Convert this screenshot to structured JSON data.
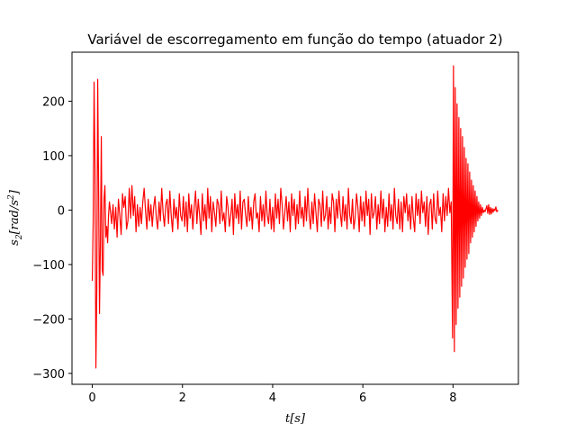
{
  "chart_data": {
    "type": "line",
    "title": "Variável de escorregamento em função do tempo (atuador 2)",
    "xlabel": "t[s]",
    "ylabel": "s2[rad/s2]",
    "xlim": [
      -0.45,
      9.45
    ],
    "ylim": [
      -320,
      290
    ],
    "x_ticks": [
      0,
      2,
      4,
      6,
      8
    ],
    "y_ticks": [
      -300,
      -200,
      -100,
      0,
      100,
      200
    ],
    "grid": false,
    "legend": "none",
    "series": [
      {
        "color": "#ff0000",
        "x": [
          0.0,
          0.02,
          0.04,
          0.06,
          0.08,
          0.1,
          0.12,
          0.14,
          0.16,
          0.18,
          0.2,
          0.22,
          0.24,
          0.26,
          0.28,
          0.3,
          0.32,
          0.34,
          0.36,
          0.38,
          0.4,
          0.43,
          0.46,
          0.49,
          0.52,
          0.55,
          0.58,
          0.61,
          0.64,
          0.67,
          0.7,
          0.73,
          0.76,
          0.79,
          0.82,
          0.85,
          0.88,
          0.91,
          0.94,
          0.97,
          1.0,
          1.03,
          1.06,
          1.09,
          1.12,
          1.15,
          1.18,
          1.21,
          1.24,
          1.27,
          1.3,
          1.33,
          1.36,
          1.39,
          1.42,
          1.45,
          1.48,
          1.51,
          1.54,
          1.57,
          1.6,
          1.63,
          1.66,
          1.69,
          1.72,
          1.75,
          1.78,
          1.81,
          1.84,
          1.87,
          1.9,
          1.93,
          1.96,
          1.99,
          2.02,
          2.05,
          2.08,
          2.11,
          2.14,
          2.17,
          2.2,
          2.23,
          2.26,
          2.29,
          2.32,
          2.35,
          2.38,
          2.41,
          2.44,
          2.47,
          2.5,
          2.53,
          2.56,
          2.59,
          2.62,
          2.65,
          2.68,
          2.71,
          2.74,
          2.77,
          2.8,
          2.83,
          2.86,
          2.89,
          2.92,
          2.95,
          2.98,
          3.01,
          3.04,
          3.07,
          3.1,
          3.13,
          3.16,
          3.19,
          3.22,
          3.25,
          3.28,
          3.31,
          3.34,
          3.37,
          3.4,
          3.43,
          3.46,
          3.49,
          3.52,
          3.55,
          3.58,
          3.61,
          3.64,
          3.67,
          3.7,
          3.73,
          3.76,
          3.79,
          3.82,
          3.85,
          3.88,
          3.91,
          3.94,
          3.97,
          4.0,
          4.03,
          4.06,
          4.09,
          4.12,
          4.15,
          4.18,
          4.21,
          4.24,
          4.27,
          4.3,
          4.33,
          4.36,
          4.39,
          4.42,
          4.45,
          4.48,
          4.51,
          4.54,
          4.57,
          4.6,
          4.63,
          4.66,
          4.69,
          4.72,
          4.75,
          4.78,
          4.81,
          4.84,
          4.87,
          4.9,
          4.93,
          4.96,
          4.99,
          5.02,
          5.05,
          5.08,
          5.11,
          5.14,
          5.17,
          5.2,
          5.23,
          5.26,
          5.29,
          5.32,
          5.35,
          5.38,
          5.41,
          5.44,
          5.47,
          5.5,
          5.53,
          5.56,
          5.59,
          5.62,
          5.65,
          5.68,
          5.71,
          5.74,
          5.77,
          5.8,
          5.83,
          5.86,
          5.89,
          5.92,
          5.95,
          5.98,
          6.01,
          6.04,
          6.07,
          6.1,
          6.13,
          6.16,
          6.19,
          6.22,
          6.25,
          6.28,
          6.31,
          6.34,
          6.37,
          6.4,
          6.43,
          6.46,
          6.49,
          6.52,
          6.55,
          6.58,
          6.61,
          6.64,
          6.67,
          6.7,
          6.73,
          6.76,
          6.79,
          6.82,
          6.85,
          6.88,
          6.91,
          6.94,
          6.97,
          7.0,
          7.03,
          7.06,
          7.09,
          7.12,
          7.15,
          7.18,
          7.21,
          7.24,
          7.27,
          7.3,
          7.33,
          7.36,
          7.39,
          7.42,
          7.45,
          7.48,
          7.51,
          7.54,
          7.57,
          7.6,
          7.63,
          7.66,
          7.69,
          7.72,
          7.75,
          7.78,
          7.81,
          7.84,
          7.87,
          7.9,
          7.93,
          7.96,
          7.99,
          8.01,
          8.03,
          8.05,
          8.07,
          8.09,
          8.11,
          8.13,
          8.15,
          8.17,
          8.19,
          8.21,
          8.23,
          8.25,
          8.27,
          8.29,
          8.31,
          8.33,
          8.35,
          8.37,
          8.39,
          8.41,
          8.43,
          8.45,
          8.47,
          8.49,
          8.51,
          8.53,
          8.55,
          8.57,
          8.59,
          8.61,
          8.63,
          8.65,
          8.67,
          8.69,
          8.71,
          8.73,
          8.75,
          8.77,
          8.79,
          8.81,
          8.83,
          8.85,
          8.87,
          8.89,
          8.91,
          8.93,
          8.95,
          8.97,
          9.0
        ],
        "y": [
          -130,
          -20,
          235,
          80,
          -290,
          -150,
          240,
          40,
          -190,
          -60,
          135,
          -110,
          -120,
          20,
          45,
          -50,
          -30,
          -60,
          -10,
          15,
          0,
          -25,
          10,
          -35,
          5,
          -50,
          20,
          -10,
          -45,
          30,
          5,
          25,
          -35,
          -20,
          40,
          -15,
          45,
          -10,
          25,
          -40,
          10,
          -30,
          5,
          -25,
          15,
          40,
          0,
          -35,
          20,
          -20,
          10,
          -30,
          5,
          25,
          -15,
          -35,
          15,
          -20,
          40,
          -5,
          -30,
          10,
          20,
          -25,
          35,
          -10,
          -40,
          20,
          -15,
          5,
          -35,
          30,
          -10,
          -20,
          25,
          -30,
          15,
          -40,
          30,
          -15,
          10,
          -35,
          5,
          35,
          -25,
          20,
          -10,
          -45,
          30,
          -20,
          10,
          -35,
          40,
          -15,
          25,
          -40,
          15,
          -5,
          -30,
          20,
          10,
          -25,
          35,
          -20,
          -5,
          -40,
          25,
          5,
          -30,
          -10,
          20,
          -45,
          30,
          -15,
          10,
          -25,
          35,
          -35,
          15,
          20,
          -10,
          -30,
          25,
          -20,
          5,
          -35,
          15,
          30,
          -15,
          -5,
          -40,
          25,
          -20,
          10,
          -30,
          35,
          -10,
          -25,
          20,
          -35,
          5,
          -40,
          30,
          -15,
          20,
          -25,
          40,
          10,
          -35,
          -5,
          25,
          -20,
          15,
          -40,
          30,
          -10,
          20,
          -35,
          10,
          -25,
          35,
          -15,
          5,
          -30,
          25,
          -20,
          40,
          -10,
          -35,
          15,
          -25,
          30,
          -5,
          -40,
          20,
          10,
          -30,
          35,
          -20,
          -10,
          25,
          -35,
          5,
          -25,
          30,
          15,
          -40,
          20,
          -15,
          35,
          -5,
          -30,
          25,
          -20,
          10,
          -35,
          40,
          -10,
          -25,
          20,
          -35,
          -15,
          30,
          5,
          -40,
          25,
          -20,
          15,
          -30,
          35,
          -10,
          20,
          -45,
          30,
          -15,
          -5,
          25,
          -35,
          10,
          -25,
          35,
          -15,
          20,
          -40,
          5,
          -30,
          30,
          -20,
          10,
          -35,
          40,
          -10,
          -25,
          20,
          -35,
          15,
          -40,
          25,
          -5,
          30,
          -20,
          10,
          -35,
          25,
          -15,
          -40,
          30,
          -10,
          20,
          -25,
          35,
          -5,
          15,
          -30,
          25,
          -45,
          10,
          20,
          -35,
          30,
          -15,
          -25,
          35,
          -10,
          5,
          -40,
          30,
          -20,
          25,
          -10,
          40,
          -5,
          15,
          -235,
          265,
          -260,
          225,
          -210,
          195,
          -180,
          170,
          -160,
          150,
          -140,
          135,
          -125,
          115,
          -105,
          95,
          -90,
          85,
          -80,
          70,
          -60,
          55,
          -50,
          45,
          -40,
          35,
          -30,
          25,
          -20,
          15,
          -15,
          10,
          -10,
          5,
          -5,
          0,
          -3,
          2,
          8,
          -6,
          10,
          -8,
          5,
          -7,
          3,
          -4,
          2,
          -1,
          6,
          -3,
          0
        ]
      }
    ]
  }
}
